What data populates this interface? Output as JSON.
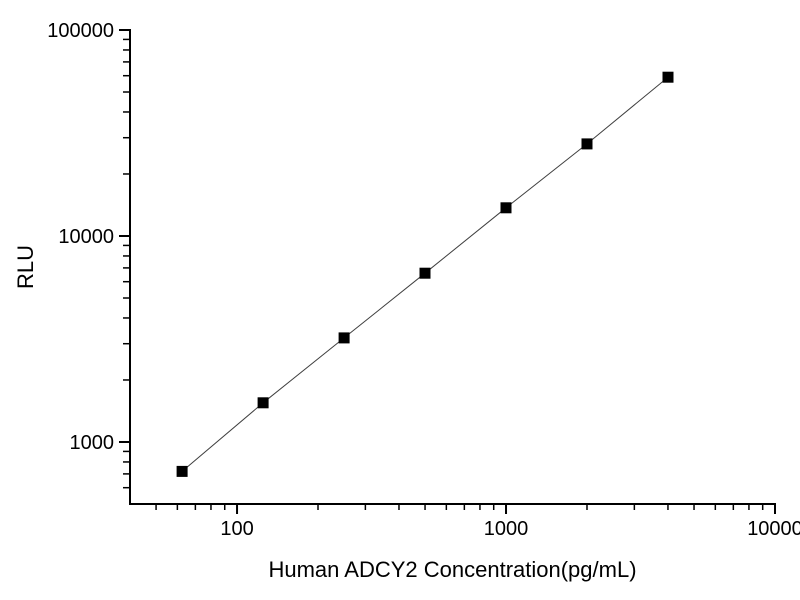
{
  "page": {
    "background": "#ffffff",
    "description": "Standard curve chart, black on white, log-log axes, open frame (left and bottom axes only)"
  },
  "chart_data": {
    "type": "scatter",
    "subtype": "scatter-with-connecting-line",
    "title": "",
    "xlabel": "Human ADCY2 Concentration(pg/mL)",
    "ylabel": "RLU",
    "x_scale": "log",
    "y_scale": "log",
    "xlim": [
      40,
      10000
    ],
    "ylim": [
      500,
      100000
    ],
    "x_major_ticks": [
      100,
      1000,
      10000
    ],
    "x_tick_labels": [
      "100",
      "1000",
      "10000"
    ],
    "y_major_ticks": [
      1000,
      10000,
      100000
    ],
    "y_tick_labels": [
      "1000",
      "10000",
      "100000"
    ],
    "tick_direction": "out",
    "grid": false,
    "legend": "none",
    "axis_color": "#000000",
    "series": [
      {
        "name": "standard-curve",
        "marker": "filled-square",
        "marker_color": "#000000",
        "marker_size_px": 11,
        "line_color": "#3f3f3f",
        "x": [
          62.5,
          125,
          250,
          500,
          1000,
          2000,
          4000
        ],
        "y": [
          720,
          1550,
          3200,
          6600,
          13700,
          28000,
          59000
        ]
      }
    ]
  }
}
